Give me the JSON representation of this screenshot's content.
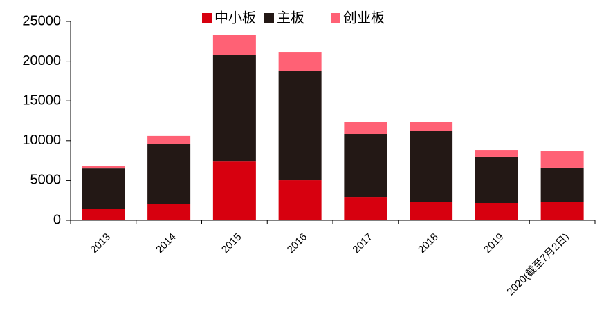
{
  "chart_data": {
    "type": "stacked_bar",
    "categories": [
      "2013",
      "2014",
      "2015",
      "2016",
      "2017",
      "2018",
      "2019",
      "2020(截至7月2日)"
    ],
    "series": [
      {
        "name": "中小板",
        "color": "#d7000f",
        "values": [
          1400,
          2000,
          7450,
          5030,
          2860,
          2260,
          2170,
          2260
        ]
      },
      {
        "name": "主板",
        "color": "#231815",
        "values": [
          5100,
          7600,
          13380,
          13720,
          7990,
          8940,
          5820,
          4340
        ]
      },
      {
        "name": "创业板",
        "color": "#ff6175",
        "values": [
          350,
          1000,
          2520,
          2340,
          1560,
          1130,
          860,
          2080
        ]
      }
    ],
    "ylim": [
      0,
      25000
    ],
    "yticks": [
      0,
      5000,
      10000,
      15000,
      20000,
      25000
    ],
    "legend": "top"
  }
}
